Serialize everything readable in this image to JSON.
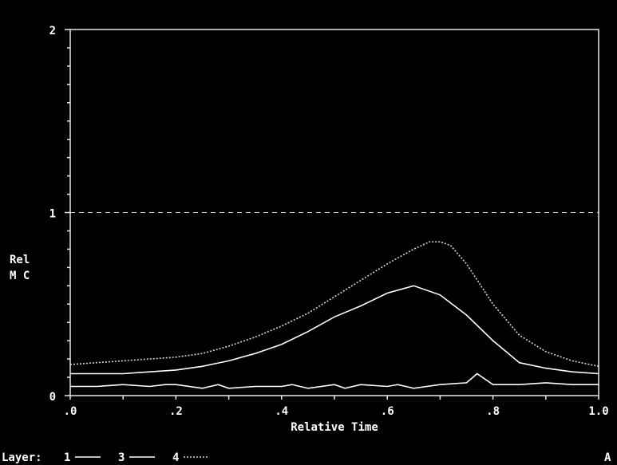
{
  "chart_data": {
    "type": "line",
    "xlabel": "Relative Time",
    "ylabel_lines": [
      "Rel",
      "M C"
    ],
    "xlim": [
      0,
      1
    ],
    "ylim": [
      0,
      2
    ],
    "x_ticks": [
      0,
      0.1,
      0.2,
      0.3,
      0.4,
      0.5,
      0.6,
      0.7,
      0.8,
      0.9,
      1.0
    ],
    "x_tick_labels": [
      ".0",
      ".2",
      ".4",
      ".6",
      ".8",
      "1.0"
    ],
    "x_tick_label_values": [
      0,
      0.2,
      0.4,
      0.6,
      0.8,
      1.0
    ],
    "y_tick_labels": [
      "0",
      "1",
      "2"
    ],
    "y_tick_label_values": [
      0,
      1,
      2
    ],
    "reference_line": {
      "y": 1,
      "style": "dashed"
    },
    "legend_prefix": "Layer:",
    "series": [
      {
        "name": "1",
        "style": "solid",
        "x": [
          0,
          0.05,
          0.1,
          0.15,
          0.18,
          0.2,
          0.25,
          0.28,
          0.3,
          0.35,
          0.4,
          0.42,
          0.45,
          0.5,
          0.52,
          0.55,
          0.6,
          0.62,
          0.65,
          0.7,
          0.75,
          0.77,
          0.8,
          0.85,
          0.9,
          0.95,
          1.0
        ],
        "values": [
          0.05,
          0.05,
          0.06,
          0.05,
          0.06,
          0.06,
          0.04,
          0.06,
          0.04,
          0.05,
          0.05,
          0.06,
          0.04,
          0.06,
          0.04,
          0.06,
          0.05,
          0.06,
          0.04,
          0.06,
          0.07,
          0.12,
          0.06,
          0.06,
          0.07,
          0.06,
          0.06
        ]
      },
      {
        "name": "3",
        "style": "solid",
        "x": [
          0,
          0.05,
          0.1,
          0.15,
          0.2,
          0.25,
          0.3,
          0.35,
          0.4,
          0.45,
          0.5,
          0.55,
          0.6,
          0.65,
          0.7,
          0.75,
          0.8,
          0.85,
          0.9,
          0.95,
          1.0
        ],
        "values": [
          0.12,
          0.12,
          0.12,
          0.13,
          0.14,
          0.16,
          0.19,
          0.23,
          0.28,
          0.35,
          0.43,
          0.49,
          0.56,
          0.6,
          0.55,
          0.44,
          0.3,
          0.18,
          0.15,
          0.13,
          0.12
        ]
      },
      {
        "name": "4",
        "style": "dotted",
        "x": [
          0,
          0.05,
          0.1,
          0.15,
          0.2,
          0.25,
          0.3,
          0.35,
          0.4,
          0.45,
          0.5,
          0.55,
          0.6,
          0.65,
          0.68,
          0.7,
          0.72,
          0.75,
          0.8,
          0.85,
          0.9,
          0.95,
          1.0
        ],
        "values": [
          0.17,
          0.18,
          0.19,
          0.2,
          0.21,
          0.23,
          0.27,
          0.32,
          0.38,
          0.45,
          0.54,
          0.63,
          0.72,
          0.8,
          0.84,
          0.84,
          0.82,
          0.72,
          0.5,
          0.33,
          0.24,
          0.19,
          0.16
        ]
      }
    ],
    "corner_mark": "A"
  }
}
